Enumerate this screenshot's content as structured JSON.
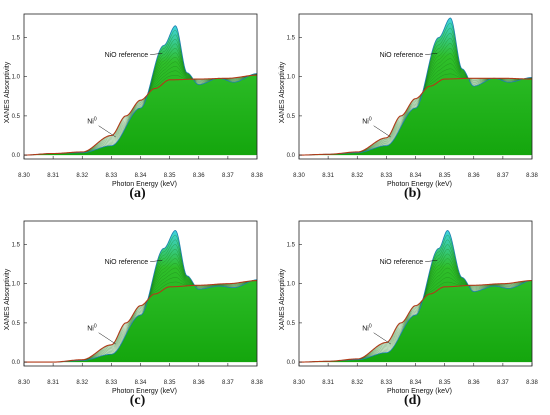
{
  "chart_data": [
    {
      "type": "line",
      "panel_label": "(a)",
      "xlabel": "Photon Energy (keV)",
      "ylabel": "XANES Absorptivity",
      "xlim": [
        8.3,
        8.38
      ],
      "ylim": [
        -0.05,
        1.8
      ],
      "xticks": [
        "8.30",
        "8.31",
        "8.32",
        "8.33",
        "8.34",
        "8.35",
        "8.36",
        "8.37",
        "8.38"
      ],
      "yticks": [
        "0.0",
        "0.5",
        "1.0",
        "1.5"
      ],
      "annotations": [
        {
          "text": "NiO reference",
          "x": 8.344,
          "y": 1.28
        },
        {
          "text": "Ni",
          "sup": "0",
          "x": 8.327,
          "y": 0.4
        }
      ],
      "series": [
        {
          "values": [
            [
              8.3,
              0.0
            ],
            [
              8.31,
              0.02
            ],
            [
              8.32,
              0.03
            ],
            [
              8.33,
              0.12
            ],
            [
              8.34,
              0.6
            ],
            [
              8.348,
              1.4
            ],
            [
              8.352,
              1.65
            ],
            [
              8.356,
              1.05
            ],
            [
              8.36,
              0.9
            ],
            [
              8.367,
              0.98
            ],
            [
              8.372,
              0.93
            ],
            [
              8.38,
              1.04
            ]
          ]
        },
        {
          "values": [
            [
              8.3,
              0.0
            ],
            [
              8.31,
              0.02
            ],
            [
              8.32,
              0.04
            ],
            [
              8.33,
              0.25
            ],
            [
              8.335,
              0.5
            ],
            [
              8.34,
              0.7
            ],
            [
              8.345,
              0.85
            ],
            [
              8.35,
              0.96
            ],
            [
              8.36,
              0.97
            ],
            [
              8.37,
              0.98
            ],
            [
              8.38,
              1.02
            ]
          ]
        }
      ]
    },
    {
      "type": "line",
      "panel_label": "(b)",
      "xlabel": "Photon Energy (keV)",
      "ylabel": "XANES Absorptivity",
      "xlim": [
        8.3,
        8.38
      ],
      "ylim": [
        -0.05,
        1.8
      ],
      "xticks": [
        "8.30",
        "8.31",
        "8.32",
        "8.33",
        "8.34",
        "8.35",
        "8.36",
        "8.37",
        "8.38"
      ],
      "yticks": [
        "0.0",
        "0.5",
        "1.0",
        "1.5"
      ],
      "annotations": [
        {
          "text": "NiO reference",
          "x": 8.344,
          "y": 1.28
        },
        {
          "text": "Ni",
          "sup": "0",
          "x": 8.327,
          "y": 0.4
        }
      ],
      "series": [
        {
          "values": [
            [
              8.3,
              0.0
            ],
            [
              8.31,
              0.01
            ],
            [
              8.32,
              0.03
            ],
            [
              8.33,
              0.12
            ],
            [
              8.34,
              0.6
            ],
            [
              8.348,
              1.5
            ],
            [
              8.352,
              1.75
            ],
            [
              8.356,
              1.1
            ],
            [
              8.36,
              0.88
            ],
            [
              8.367,
              0.98
            ],
            [
              8.372,
              0.93
            ],
            [
              8.38,
              0.99
            ]
          ]
        },
        {
          "values": [
            [
              8.3,
              0.0
            ],
            [
              8.31,
              0.01
            ],
            [
              8.32,
              0.04
            ],
            [
              8.33,
              0.22
            ],
            [
              8.335,
              0.5
            ],
            [
              8.34,
              0.72
            ],
            [
              8.345,
              0.88
            ],
            [
              8.35,
              0.97
            ],
            [
              8.36,
              0.98
            ],
            [
              8.37,
              0.98
            ],
            [
              8.38,
              0.97
            ]
          ]
        }
      ]
    },
    {
      "type": "line",
      "panel_label": "(c)",
      "xlabel": "Photon Energy (keV)",
      "ylabel": "XANES Absorptivity",
      "xlim": [
        8.3,
        8.38
      ],
      "ylim": [
        -0.05,
        1.8
      ],
      "xticks": [
        "8.30",
        "8.31",
        "8.32",
        "8.33",
        "8.34",
        "8.35",
        "8.36",
        "8.37",
        "8.38"
      ],
      "yticks": [
        "0.0",
        "0.5",
        "1.0",
        "1.5"
      ],
      "annotations": [
        {
          "text": "NiO reference",
          "x": 8.344,
          "y": 1.28
        },
        {
          "text": "Ni",
          "sup": "0",
          "x": 8.327,
          "y": 0.4
        }
      ],
      "series": [
        {
          "values": [
            [
              8.3,
              0.0
            ],
            [
              8.31,
              0.0
            ],
            [
              8.32,
              0.02
            ],
            [
              8.33,
              0.1
            ],
            [
              8.34,
              0.6
            ],
            [
              8.348,
              1.45
            ],
            [
              8.352,
              1.68
            ],
            [
              8.356,
              1.1
            ],
            [
              8.36,
              0.93
            ],
            [
              8.367,
              0.97
            ],
            [
              8.372,
              0.95
            ],
            [
              8.38,
              1.05
            ]
          ]
        },
        {
          "values": [
            [
              8.3,
              0.0
            ],
            [
              8.31,
              0.0
            ],
            [
              8.32,
              0.03
            ],
            [
              8.33,
              0.22
            ],
            [
              8.335,
              0.5
            ],
            [
              8.34,
              0.72
            ],
            [
              8.345,
              0.87
            ],
            [
              8.35,
              0.96
            ],
            [
              8.36,
              0.98
            ],
            [
              8.37,
              1.0
            ],
            [
              8.38,
              1.04
            ]
          ]
        }
      ]
    },
    {
      "type": "line",
      "panel_label": "(d)",
      "xlabel": "Photon Energy (keV)",
      "ylabel": "XANES Absorptivity",
      "xlim": [
        8.3,
        8.38
      ],
      "ylim": [
        -0.05,
        1.8
      ],
      "xticks": [
        "8.30",
        "8.31",
        "8.32",
        "8.33",
        "8.34",
        "8.35",
        "8.36",
        "8.37",
        "8.38"
      ],
      "yticks": [
        "0.0",
        "0.5",
        "1.0",
        "1.5"
      ],
      "annotations": [
        {
          "text": "NiO reference",
          "x": 8.344,
          "y": 1.28
        },
        {
          "text": "Ni",
          "sup": "0",
          "x": 8.327,
          "y": 0.4
        }
      ],
      "series": [
        {
          "values": [
            [
              8.3,
              0.0
            ],
            [
              8.31,
              0.01
            ],
            [
              8.32,
              0.03
            ],
            [
              8.33,
              0.12
            ],
            [
              8.34,
              0.6
            ],
            [
              8.348,
              1.45
            ],
            [
              8.351,
              1.68
            ],
            [
              8.356,
              1.08
            ],
            [
              8.36,
              0.9
            ],
            [
              8.367,
              0.97
            ],
            [
              8.372,
              0.94
            ],
            [
              8.38,
              1.04
            ]
          ]
        },
        {
          "values": [
            [
              8.3,
              0.0
            ],
            [
              8.31,
              0.01
            ],
            [
              8.32,
              0.04
            ],
            [
              8.33,
              0.25
            ],
            [
              8.335,
              0.5
            ],
            [
              8.34,
              0.72
            ],
            [
              8.345,
              0.87
            ],
            [
              8.35,
              0.96
            ],
            [
              8.36,
              0.98
            ],
            [
              8.37,
              1.0
            ],
            [
              8.38,
              1.04
            ]
          ]
        }
      ]
    }
  ],
  "colors": {
    "fill_top": "#3fd3e0",
    "fill_mid": "#2fbf2a",
    "fill_bottom": "#14a60d",
    "intermediate_line": "#1a7a1a",
    "reference_line": "#1d7fb0",
    "ni0_line": "#b03a18",
    "axis": "#222222"
  }
}
